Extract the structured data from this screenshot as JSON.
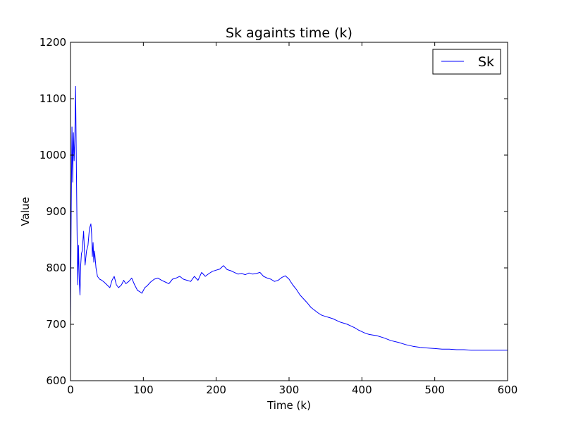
{
  "chart_data": {
    "type": "line",
    "title": "Sk againts time (k)",
    "xlabel": "Time (k)",
    "ylabel": "Value",
    "xlim": [
      0,
      600
    ],
    "ylim": [
      600,
      1200
    ],
    "xticks": [
      0,
      100,
      200,
      300,
      400,
      500,
      600
    ],
    "yticks": [
      600,
      700,
      800,
      900,
      1000,
      1100,
      1200
    ],
    "xtick_labels": [
      "0",
      "100",
      "200",
      "300",
      "400",
      "500",
      "600"
    ],
    "ytick_labels": [
      "600",
      "700",
      "800",
      "900",
      "1000",
      "1100",
      "1200"
    ],
    "grid": false,
    "legend_position": "top-right",
    "series": [
      {
        "name": "Sk",
        "color": "#0000ff",
        "x": [
          0,
          1,
          2,
          3,
          4,
          5,
          6,
          7,
          8,
          9,
          10,
          11,
          12,
          13,
          14,
          15,
          16,
          18,
          20,
          22,
          24,
          26,
          28,
          29,
          30,
          31,
          32,
          33,
          35,
          37,
          40,
          43,
          46,
          50,
          54,
          57,
          60,
          63,
          66,
          70,
          73,
          76,
          80,
          84,
          88,
          92,
          95,
          98,
          100,
          102,
          105,
          110,
          115,
          120,
          125,
          130,
          135,
          140,
          145,
          150,
          155,
          160,
          165,
          170,
          175,
          180,
          185,
          190,
          195,
          200,
          205,
          210,
          215,
          220,
          225,
          230,
          235,
          240,
          245,
          250,
          255,
          260,
          265,
          270,
          275,
          280,
          285,
          290,
          295,
          300,
          305,
          310,
          315,
          320,
          325,
          330,
          335,
          340,
          345,
          350,
          355,
          360,
          365,
          370,
          375,
          380,
          385,
          390,
          395,
          400,
          405,
          410,
          415,
          420,
          430,
          440,
          450,
          460,
          470,
          480,
          490,
          500,
          510,
          520,
          530,
          540,
          550,
          560,
          570,
          580,
          590,
          600
        ],
        "y": [
          700,
          905,
          1050,
          952,
          1040,
          990,
          1035,
          1122,
          990,
          865,
          770,
          840,
          780,
          752,
          805,
          825,
          830,
          865,
          805,
          830,
          840,
          870,
          878,
          860,
          820,
          845,
          810,
          830,
          800,
          785,
          780,
          778,
          775,
          770,
          765,
          778,
          785,
          770,
          765,
          770,
          778,
          772,
          776,
          782,
          770,
          760,
          758,
          755,
          760,
          765,
          768,
          775,
          780,
          782,
          778,
          775,
          772,
          780,
          782,
          785,
          780,
          778,
          776,
          785,
          778,
          792,
          785,
          790,
          794,
          796,
          798,
          804,
          797,
          795,
          792,
          789,
          790,
          788,
          791,
          789,
          790,
          792,
          785,
          782,
          780,
          776,
          778,
          783,
          786,
          780,
          770,
          762,
          752,
          745,
          738,
          730,
          725,
          720,
          716,
          714,
          712,
          710,
          707,
          704,
          702,
          700,
          697,
          694,
          690,
          687,
          684,
          682,
          681,
          680,
          676,
          671,
          668,
          664,
          661,
          659,
          658,
          657,
          656,
          656,
          655,
          655,
          654,
          654,
          654,
          654,
          654,
          654
        ]
      }
    ]
  }
}
